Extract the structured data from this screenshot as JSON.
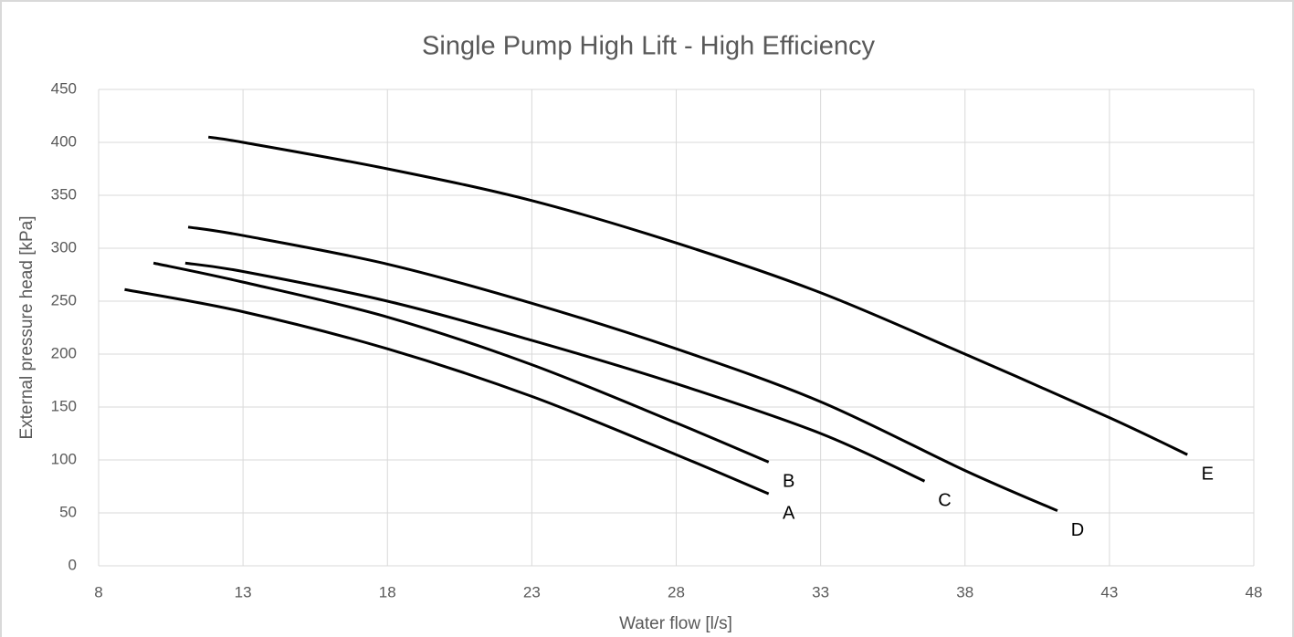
{
  "chart_data": {
    "type": "line",
    "title": "Single Pump High Lift - High Efficiency",
    "x_label": "Water flow [l/s]",
    "y_label": "External pressure head [kPa]",
    "xlim": [
      8,
      48
    ],
    "xticks": [
      8,
      13,
      18,
      23,
      28,
      33,
      38,
      43,
      48
    ],
    "ylim": [
      0,
      450
    ],
    "yticks": [
      0,
      50,
      100,
      150,
      200,
      250,
      300,
      350,
      400,
      450
    ],
    "grid": true,
    "series": [
      {
        "name": "A",
        "color": "#000000",
        "x": [
          8.9,
          13,
          18,
          23,
          28,
          31.2
        ],
        "values": [
          261,
          240,
          205,
          160,
          105,
          68
        ]
      },
      {
        "name": "B",
        "color": "#000000",
        "x": [
          9.9,
          13,
          18,
          23,
          28,
          31.2
        ],
        "values": [
          286,
          268,
          235,
          190,
          135,
          98
        ]
      },
      {
        "name": "C",
        "color": "#000000",
        "x": [
          11,
          13,
          18,
          23,
          28,
          33,
          36.6
        ],
        "values": [
          286,
          278,
          250,
          213,
          172,
          125,
          80
        ]
      },
      {
        "name": "D",
        "color": "#000000",
        "x": [
          11.1,
          13,
          18,
          23,
          28,
          33,
          38,
          41.2
        ],
        "values": [
          320,
          312,
          285,
          248,
          205,
          155,
          90,
          52
        ]
      },
      {
        "name": "E",
        "color": "#000000",
        "x": [
          11.8,
          13,
          18,
          23,
          28,
          33,
          38,
          43,
          45.7
        ],
        "values": [
          405,
          400,
          375,
          345,
          305,
          258,
          200,
          140,
          105
        ]
      }
    ]
  }
}
